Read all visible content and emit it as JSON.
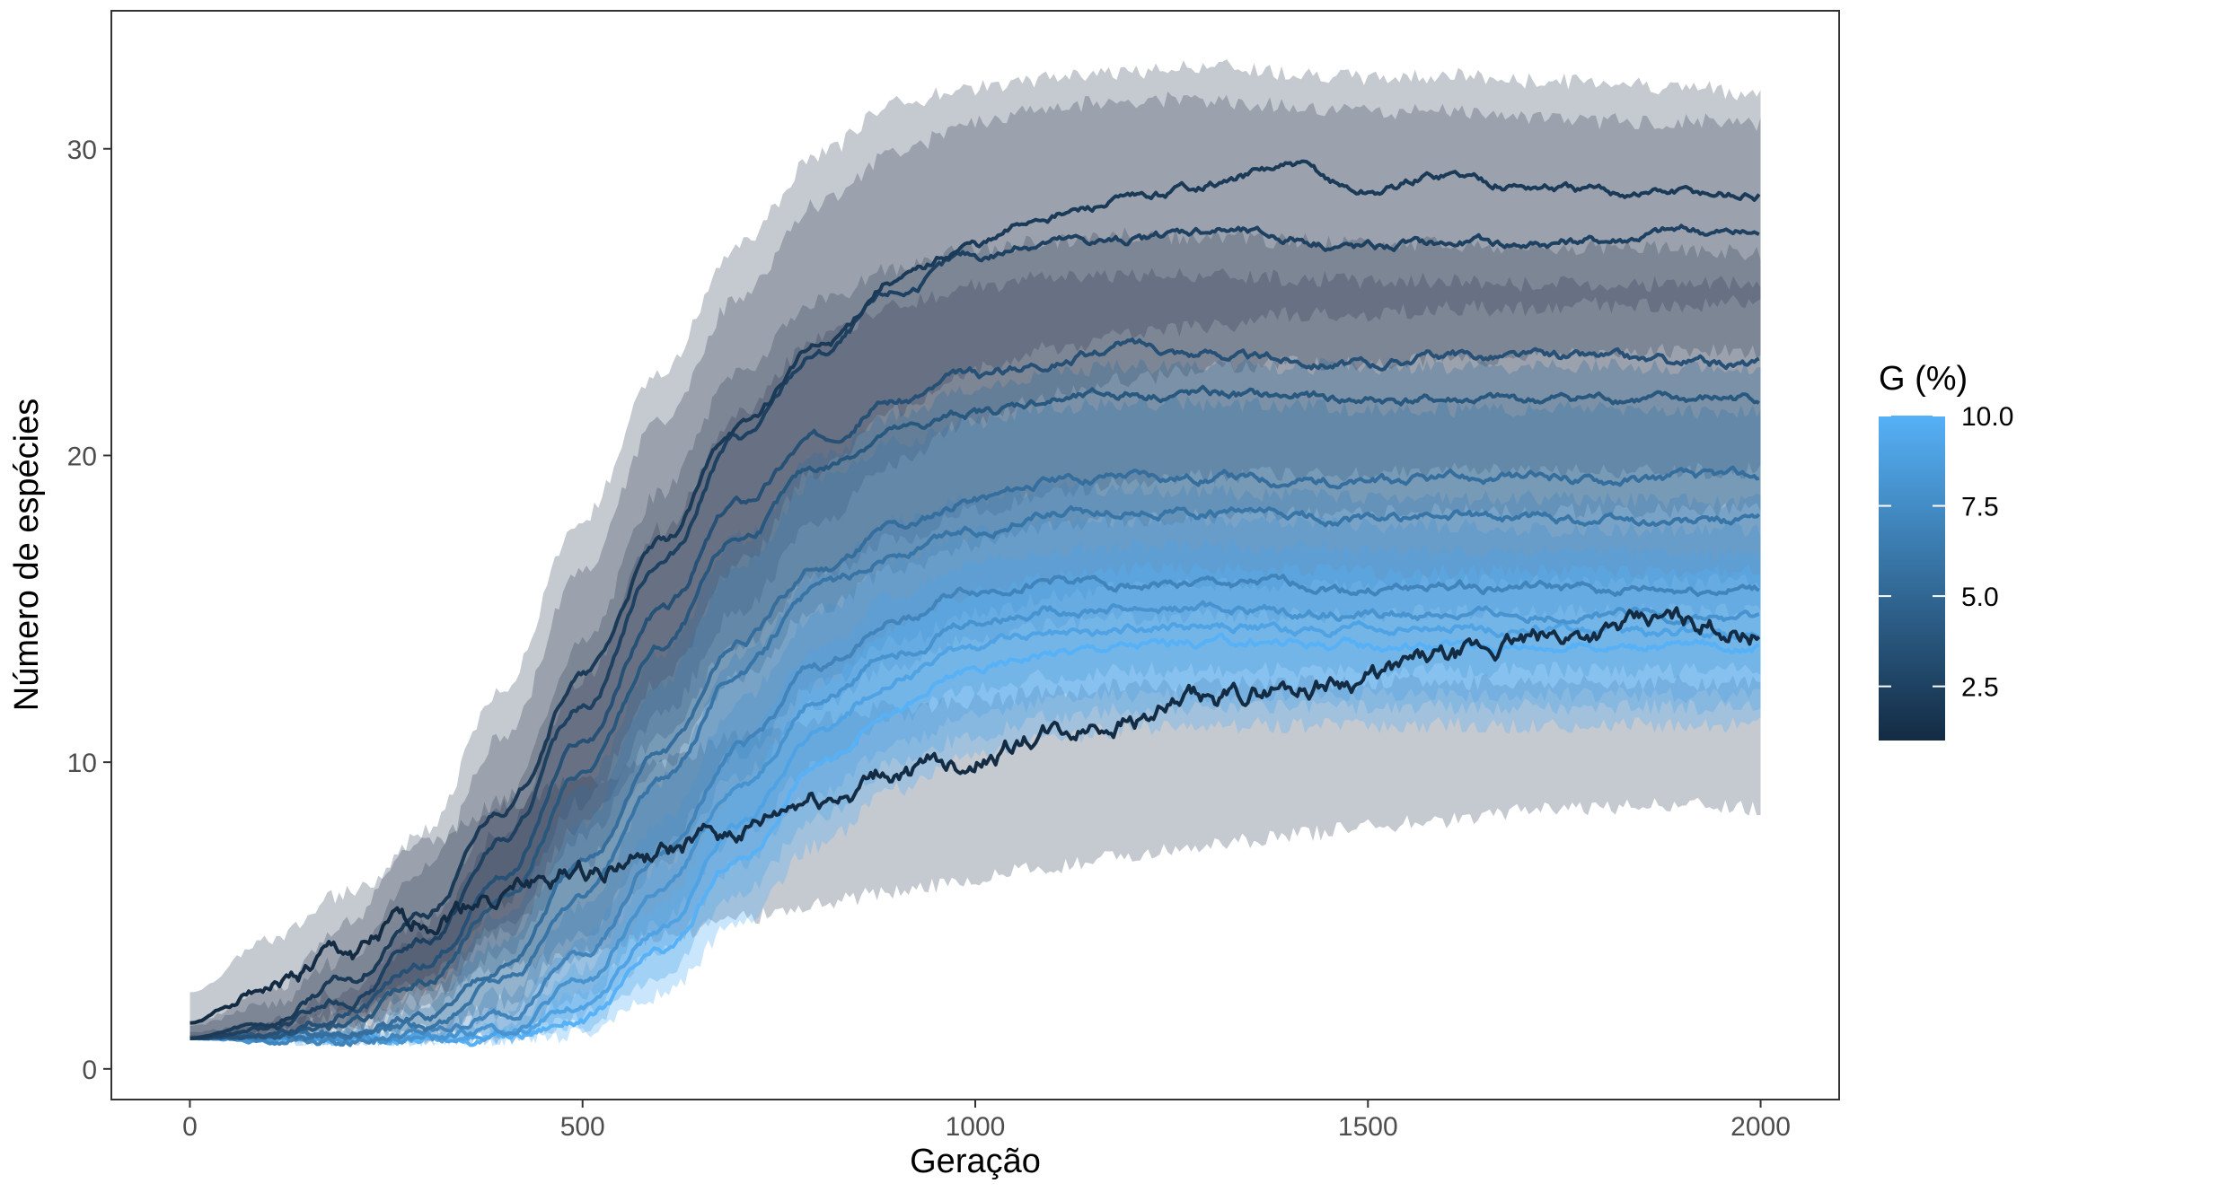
{
  "chart_data": {
    "type": "line",
    "title": "",
    "xlabel": "Geração",
    "ylabel": "Número de espécies",
    "xlim": [
      -100,
      2100
    ],
    "ylim": [
      -1,
      34.5
    ],
    "x_ticks": [
      0,
      500,
      1000,
      1500,
      2000
    ],
    "x_tick_labels": [
      "0",
      "500",
      "1000",
      "1500",
      "2000"
    ],
    "y_ticks": [
      0,
      10,
      20,
      30
    ],
    "y_tick_labels": [
      "0",
      "10",
      "20",
      "30"
    ],
    "grid": false,
    "ribbon_color": "#2f3e55",
    "legend": {
      "title": "G (%)",
      "type": "colorbar",
      "placement": "right",
      "range": [
        1,
        10
      ],
      "ticks": [
        2.5,
        5.0,
        7.5,
        10.0
      ],
      "tick_labels": [
        "2.5",
        "5.0",
        "7.5",
        "10.0"
      ],
      "color_low": "#132b43",
      "color_high": "#56b1f7"
    },
    "x": [
      0,
      100,
      200,
      300,
      400,
      500,
      600,
      700,
      800,
      900,
      1000,
      1100,
      1200,
      1300,
      1400,
      1500,
      1600,
      1700,
      1800,
      1900,
      2000
    ],
    "series": [
      {
        "g": 1,
        "values": [
          1.5,
          2.7,
          3.7,
          4.9,
          5.8,
          6.5,
          7.0,
          7.7,
          8.8,
          9.6,
          10.1,
          10.9,
          11.5,
          12.0,
          12.5,
          12.8,
          13.3,
          13.9,
          14.3,
          14.6,
          14.3
        ],
        "lower": [
          1.0,
          1.3,
          1.9,
          2.6,
          3.3,
          3.8,
          4.3,
          4.9,
          5.4,
          5.8,
          6.2,
          6.6,
          7.0,
          7.3,
          7.6,
          7.9,
          8.1,
          8.4,
          8.5,
          8.6,
          8.5
        ],
        "upper": [
          2.5,
          4.2,
          5.7,
          7.4,
          8.6,
          9.4,
          10.0,
          10.8,
          11.4,
          11.8,
          12.0,
          12.3,
          12.5,
          12.6,
          12.6,
          12.6,
          12.6,
          12.6,
          12.6,
          12.6,
          12.6
        ]
      },
      {
        "g": 2,
        "values": [
          1.0,
          1.5,
          2.9,
          5.0,
          8.5,
          12.8,
          17.1,
          21.0,
          23.5,
          25.8,
          26.9,
          27.9,
          28.3,
          28.9,
          29.4,
          28.6,
          29.2,
          28.8,
          28.6,
          28.6,
          28.5
        ],
        "lower": [
          1.0,
          1.1,
          1.8,
          3.0,
          5.4,
          8.7,
          12.7,
          16.5,
          19.5,
          21.5,
          22.8,
          23.5,
          24.0,
          24.2,
          24.6,
          24.6,
          24.8,
          24.8,
          24.9,
          24.9,
          25.0
        ],
        "upper": [
          1.5,
          2.5,
          4.8,
          7.8,
          12.5,
          18.0,
          22.8,
          26.9,
          29.8,
          31.5,
          32.0,
          32.3,
          32.5,
          32.7,
          32.5,
          32.3,
          32.4,
          32.2,
          32.2,
          32.0,
          31.8
        ]
      },
      {
        "g": 2.5,
        "values": [
          1.0,
          1.3,
          2.2,
          4.2,
          7.4,
          11.8,
          16.6,
          20.6,
          23.3,
          25.3,
          26.5,
          27.0,
          27.0,
          27.4,
          27.1,
          26.8,
          26.9,
          26.9,
          27.0,
          27.3,
          27.2
        ],
        "lower": [
          1.0,
          1.1,
          1.5,
          2.6,
          4.8,
          7.9,
          11.5,
          15.0,
          17.8,
          19.8,
          21.2,
          22.0,
          22.5,
          22.8,
          23.0,
          23.0,
          23.1,
          23.2,
          23.3,
          23.4,
          23.4
        ],
        "upper": [
          1.4,
          2.1,
          3.6,
          6.5,
          10.9,
          16.2,
          21.2,
          25.2,
          28.2,
          29.9,
          30.9,
          31.4,
          31.6,
          31.6,
          31.4,
          31.2,
          31.2,
          31.0,
          30.9,
          30.9,
          30.8
        ]
      },
      {
        "g": 3.5,
        "values": [
          1.0,
          1.1,
          1.7,
          3.4,
          6.4,
          10.6,
          14.9,
          18.5,
          20.6,
          21.8,
          22.6,
          23.1,
          23.6,
          23.3,
          23.1,
          23.0,
          23.3,
          23.2,
          23.2,
          23.0,
          23.0
        ],
        "lower": [
          1.0,
          1.0,
          1.3,
          2.3,
          4.4,
          7.5,
          10.8,
          13.9,
          16.0,
          17.3,
          18.2,
          18.8,
          19.2,
          19.3,
          19.4,
          19.4,
          19.5,
          19.5,
          19.5,
          19.5,
          19.5
        ],
        "upper": [
          1.2,
          1.5,
          2.6,
          4.9,
          8.8,
          13.9,
          18.8,
          22.8,
          25.0,
          26.1,
          26.7,
          27.0,
          27.2,
          27.1,
          27.0,
          26.9,
          26.9,
          26.8,
          26.8,
          26.7,
          26.6
        ]
      },
      {
        "g": 4,
        "values": [
          1.0,
          1.1,
          1.4,
          2.9,
          5.6,
          9.6,
          13.7,
          17.3,
          19.6,
          20.8,
          21.4,
          21.8,
          22.0,
          22.0,
          21.9,
          21.8,
          21.8,
          21.8,
          21.9,
          21.8,
          21.9
        ],
        "lower": [
          1.0,
          1.0,
          1.2,
          1.9,
          3.8,
          6.7,
          9.9,
          12.8,
          15.0,
          16.3,
          17.1,
          17.6,
          17.9,
          18.0,
          18.1,
          18.1,
          18.2,
          18.2,
          18.2,
          18.2,
          18.2
        ],
        "upper": [
          1.1,
          1.4,
          2.1,
          4.3,
          7.8,
          12.7,
          17.6,
          21.4,
          23.8,
          24.9,
          25.5,
          25.8,
          25.9,
          25.9,
          25.8,
          25.7,
          25.7,
          25.6,
          25.6,
          25.6,
          25.6
        ]
      },
      {
        "g": 5.5,
        "values": [
          1.0,
          1.0,
          1.1,
          1.7,
          3.4,
          6.6,
          10.3,
          13.9,
          16.3,
          17.7,
          18.6,
          19.2,
          19.4,
          19.3,
          19.2,
          19.1,
          19.2,
          19.3,
          19.2,
          19.3,
          19.3
        ],
        "lower": [
          1.0,
          1.0,
          1.0,
          1.2,
          2.2,
          4.4,
          7.3,
          10.3,
          12.5,
          13.9,
          14.8,
          15.4,
          15.7,
          15.8,
          15.8,
          15.8,
          15.9,
          15.9,
          15.9,
          15.9,
          15.9
        ],
        "upper": [
          1.0,
          1.1,
          1.4,
          2.6,
          5.1,
          9.2,
          13.6,
          17.3,
          19.9,
          21.3,
          22.2,
          22.7,
          22.9,
          23.0,
          22.9,
          22.9,
          22.9,
          22.9,
          22.9,
          22.9,
          22.9
        ]
      },
      {
        "g": 6,
        "values": [
          1.0,
          1.0,
          1.1,
          1.4,
          2.8,
          5.6,
          9.4,
          13.0,
          15.6,
          16.8,
          17.6,
          18.1,
          18.2,
          18.1,
          18.0,
          17.9,
          18.0,
          18.0,
          17.9,
          17.8,
          17.9
        ],
        "lower": [
          1.0,
          1.0,
          1.0,
          1.1,
          1.8,
          3.7,
          6.6,
          9.6,
          11.9,
          13.2,
          14.0,
          14.5,
          14.7,
          14.8,
          14.8,
          14.8,
          14.9,
          14.9,
          14.9,
          14.9,
          14.9
        ],
        "upper": [
          1.0,
          1.1,
          1.2,
          2.1,
          4.2,
          8.0,
          12.6,
          16.5,
          19.2,
          20.4,
          21.1,
          21.6,
          21.7,
          21.7,
          21.6,
          21.5,
          21.5,
          21.5,
          21.5,
          21.4,
          21.4
        ]
      },
      {
        "g": 7,
        "values": [
          1.0,
          1.0,
          1.0,
          1.1,
          1.7,
          3.7,
          7.0,
          10.5,
          13.1,
          14.7,
          15.6,
          15.9,
          15.8,
          15.8,
          15.8,
          15.6,
          15.7,
          15.7,
          15.6,
          15.6,
          15.6
        ],
        "lower": [
          1.0,
          1.0,
          1.0,
          1.0,
          1.2,
          2.4,
          4.8,
          7.6,
          10.0,
          11.5,
          12.4,
          12.8,
          13.0,
          13.0,
          13.0,
          13.0,
          13.0,
          13.0,
          13.0,
          13.0,
          13.0
        ],
        "upper": [
          1.0,
          1.0,
          1.1,
          1.3,
          2.5,
          5.3,
          9.4,
          13.4,
          16.1,
          17.8,
          18.6,
          18.9,
          18.9,
          18.8,
          18.7,
          18.6,
          18.6,
          18.6,
          18.6,
          18.5,
          18.5
        ]
      },
      {
        "g": 8,
        "values": [
          1.0,
          1.0,
          1.0,
          1.0,
          1.3,
          2.8,
          5.8,
          9.3,
          12.0,
          13.7,
          14.6,
          15.0,
          15.0,
          15.0,
          14.9,
          14.8,
          14.8,
          14.8,
          14.8,
          14.7,
          14.7
        ],
        "lower": [
          1.0,
          1.0,
          1.0,
          1.0,
          1.0,
          1.8,
          3.9,
          6.7,
          9.0,
          10.6,
          11.5,
          12.0,
          12.2,
          12.2,
          12.2,
          12.2,
          12.2,
          12.2,
          12.2,
          12.2,
          12.2
        ],
        "upper": [
          1.0,
          1.0,
          1.0,
          1.1,
          1.9,
          4.2,
          8.0,
          12.0,
          14.9,
          16.6,
          17.5,
          17.9,
          17.9,
          17.9,
          17.8,
          17.7,
          17.7,
          17.6,
          17.6,
          17.6,
          17.6
        ]
      },
      {
        "g": 9,
        "values": [
          1.0,
          1.0,
          1.0,
          1.0,
          1.1,
          2.1,
          4.6,
          8.0,
          10.9,
          12.7,
          13.8,
          14.2,
          14.4,
          14.4,
          14.3,
          14.3,
          14.3,
          14.3,
          14.3,
          14.2,
          14.2
        ],
        "lower": [
          1.0,
          1.0,
          1.0,
          1.0,
          1.0,
          1.4,
          3.1,
          5.7,
          8.2,
          9.9,
          10.9,
          11.5,
          11.7,
          11.8,
          11.8,
          11.8,
          11.8,
          11.8,
          11.8,
          11.8,
          11.8
        ],
        "upper": [
          1.0,
          1.0,
          1.0,
          1.0,
          1.4,
          3.3,
          6.6,
          10.6,
          13.7,
          15.5,
          16.5,
          16.9,
          17.1,
          17.1,
          17.0,
          16.9,
          16.9,
          16.9,
          16.9,
          16.8,
          16.8
        ]
      },
      {
        "g": 10,
        "values": [
          1.0,
          1.0,
          1.0,
          1.0,
          1.0,
          1.6,
          3.7,
          6.8,
          9.9,
          11.8,
          13.0,
          13.6,
          13.8,
          13.9,
          13.9,
          13.8,
          13.8,
          13.8,
          13.8,
          13.8,
          13.8
        ],
        "lower": [
          1.0,
          1.0,
          1.0,
          1.0,
          1.0,
          1.1,
          2.4,
          4.8,
          7.3,
          9.1,
          10.2,
          10.8,
          11.1,
          11.2,
          11.2,
          11.2,
          11.2,
          11.2,
          11.2,
          11.2,
          11.2
        ],
        "upper": [
          1.0,
          1.0,
          1.0,
          1.0,
          1.2,
          2.5,
          5.4,
          9.2,
          12.5,
          14.4,
          15.5,
          16.0,
          16.3,
          16.3,
          16.3,
          16.2,
          16.2,
          16.2,
          16.2,
          16.2,
          16.2
        ]
      }
    ]
  }
}
